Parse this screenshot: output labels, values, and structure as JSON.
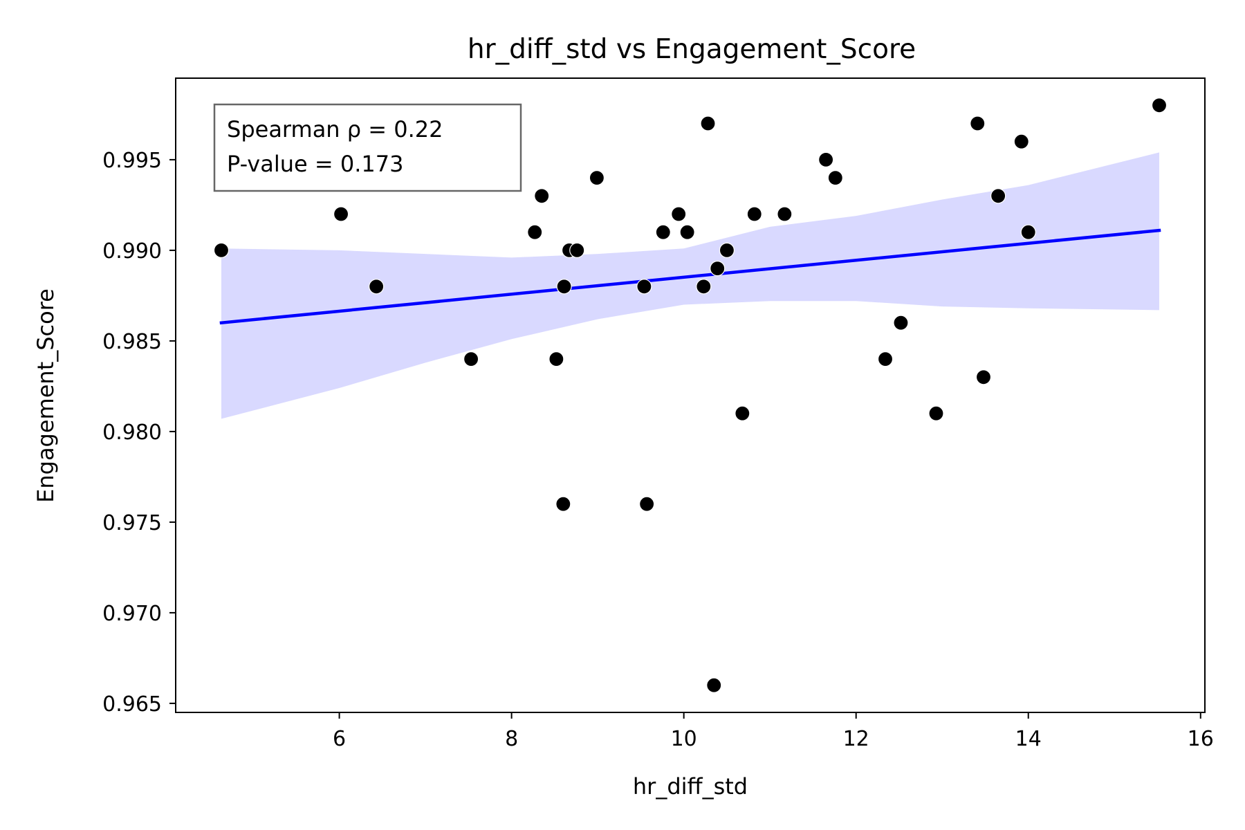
{
  "chart_data": {
    "type": "scatter",
    "title": "hr_diff_std vs Engagement_Score",
    "xlabel": "hr_diff_std",
    "ylabel": "Engagement_Score",
    "xlim": [
      4.1,
      16.05
    ],
    "ylim": [
      0.9645,
      0.9995
    ],
    "xticks": [
      6,
      8,
      10,
      12,
      14,
      16
    ],
    "yticks": [
      0.965,
      0.97,
      0.975,
      0.98,
      0.985,
      0.99,
      0.995
    ],
    "ytick_labels": [
      "0.965",
      "0.970",
      "0.975",
      "0.980",
      "0.985",
      "0.990",
      "0.995"
    ],
    "grid": false,
    "annotation": {
      "line1": "Spearman ρ = 0.22",
      "line2": "P-value = 0.173",
      "placement": "top-left"
    },
    "points": [
      {
        "x": 4.63,
        "y": 0.99
      },
      {
        "x": 6.02,
        "y": 0.992
      },
      {
        "x": 6.43,
        "y": 0.988
      },
      {
        "x": 7.53,
        "y": 0.984
      },
      {
        "x": 8.27,
        "y": 0.991
      },
      {
        "x": 8.35,
        "y": 0.993
      },
      {
        "x": 8.52,
        "y": 0.984
      },
      {
        "x": 8.6,
        "y": 0.976
      },
      {
        "x": 8.61,
        "y": 0.988
      },
      {
        "x": 8.67,
        "y": 0.99
      },
      {
        "x": 8.76,
        "y": 0.99
      },
      {
        "x": 8.99,
        "y": 0.994
      },
      {
        "x": 9.54,
        "y": 0.988
      },
      {
        "x": 9.57,
        "y": 0.976
      },
      {
        "x": 9.76,
        "y": 0.991
      },
      {
        "x": 9.94,
        "y": 0.992
      },
      {
        "x": 10.04,
        "y": 0.991
      },
      {
        "x": 10.23,
        "y": 0.988
      },
      {
        "x": 10.28,
        "y": 0.997
      },
      {
        "x": 10.35,
        "y": 0.966
      },
      {
        "x": 10.39,
        "y": 0.989
      },
      {
        "x": 10.5,
        "y": 0.99
      },
      {
        "x": 10.68,
        "y": 0.981
      },
      {
        "x": 10.82,
        "y": 0.992
      },
      {
        "x": 11.17,
        "y": 0.992
      },
      {
        "x": 11.65,
        "y": 0.995
      },
      {
        "x": 11.76,
        "y": 0.994
      },
      {
        "x": 12.34,
        "y": 0.984
      },
      {
        "x": 12.52,
        "y": 0.986
      },
      {
        "x": 12.93,
        "y": 0.981
      },
      {
        "x": 13.41,
        "y": 0.997
      },
      {
        "x": 13.48,
        "y": 0.983
      },
      {
        "x": 13.65,
        "y": 0.993
      },
      {
        "x": 13.92,
        "y": 0.996
      },
      {
        "x": 14.0,
        "y": 0.991
      },
      {
        "x": 15.52,
        "y": 0.998
      }
    ],
    "regression_line": {
      "x": [
        4.63,
        15.52
      ],
      "y": [
        0.986,
        0.9911
      ],
      "color": "#0000ff"
    },
    "confidence_band": {
      "color": "#d9d9ff",
      "x": [
        4.63,
        6.0,
        7.0,
        8.0,
        9.0,
        10.0,
        11.0,
        12.0,
        13.0,
        14.0,
        15.52
      ],
      "upper": [
        0.9901,
        0.99,
        0.9898,
        0.9896,
        0.9898,
        0.9901,
        0.9913,
        0.9919,
        0.9928,
        0.9936,
        0.9954
      ],
      "lower": [
        0.9807,
        0.9824,
        0.9838,
        0.9851,
        0.9862,
        0.987,
        0.9872,
        0.9872,
        0.9869,
        0.9868,
        0.9867
      ]
    },
    "point_color": "#000000"
  }
}
